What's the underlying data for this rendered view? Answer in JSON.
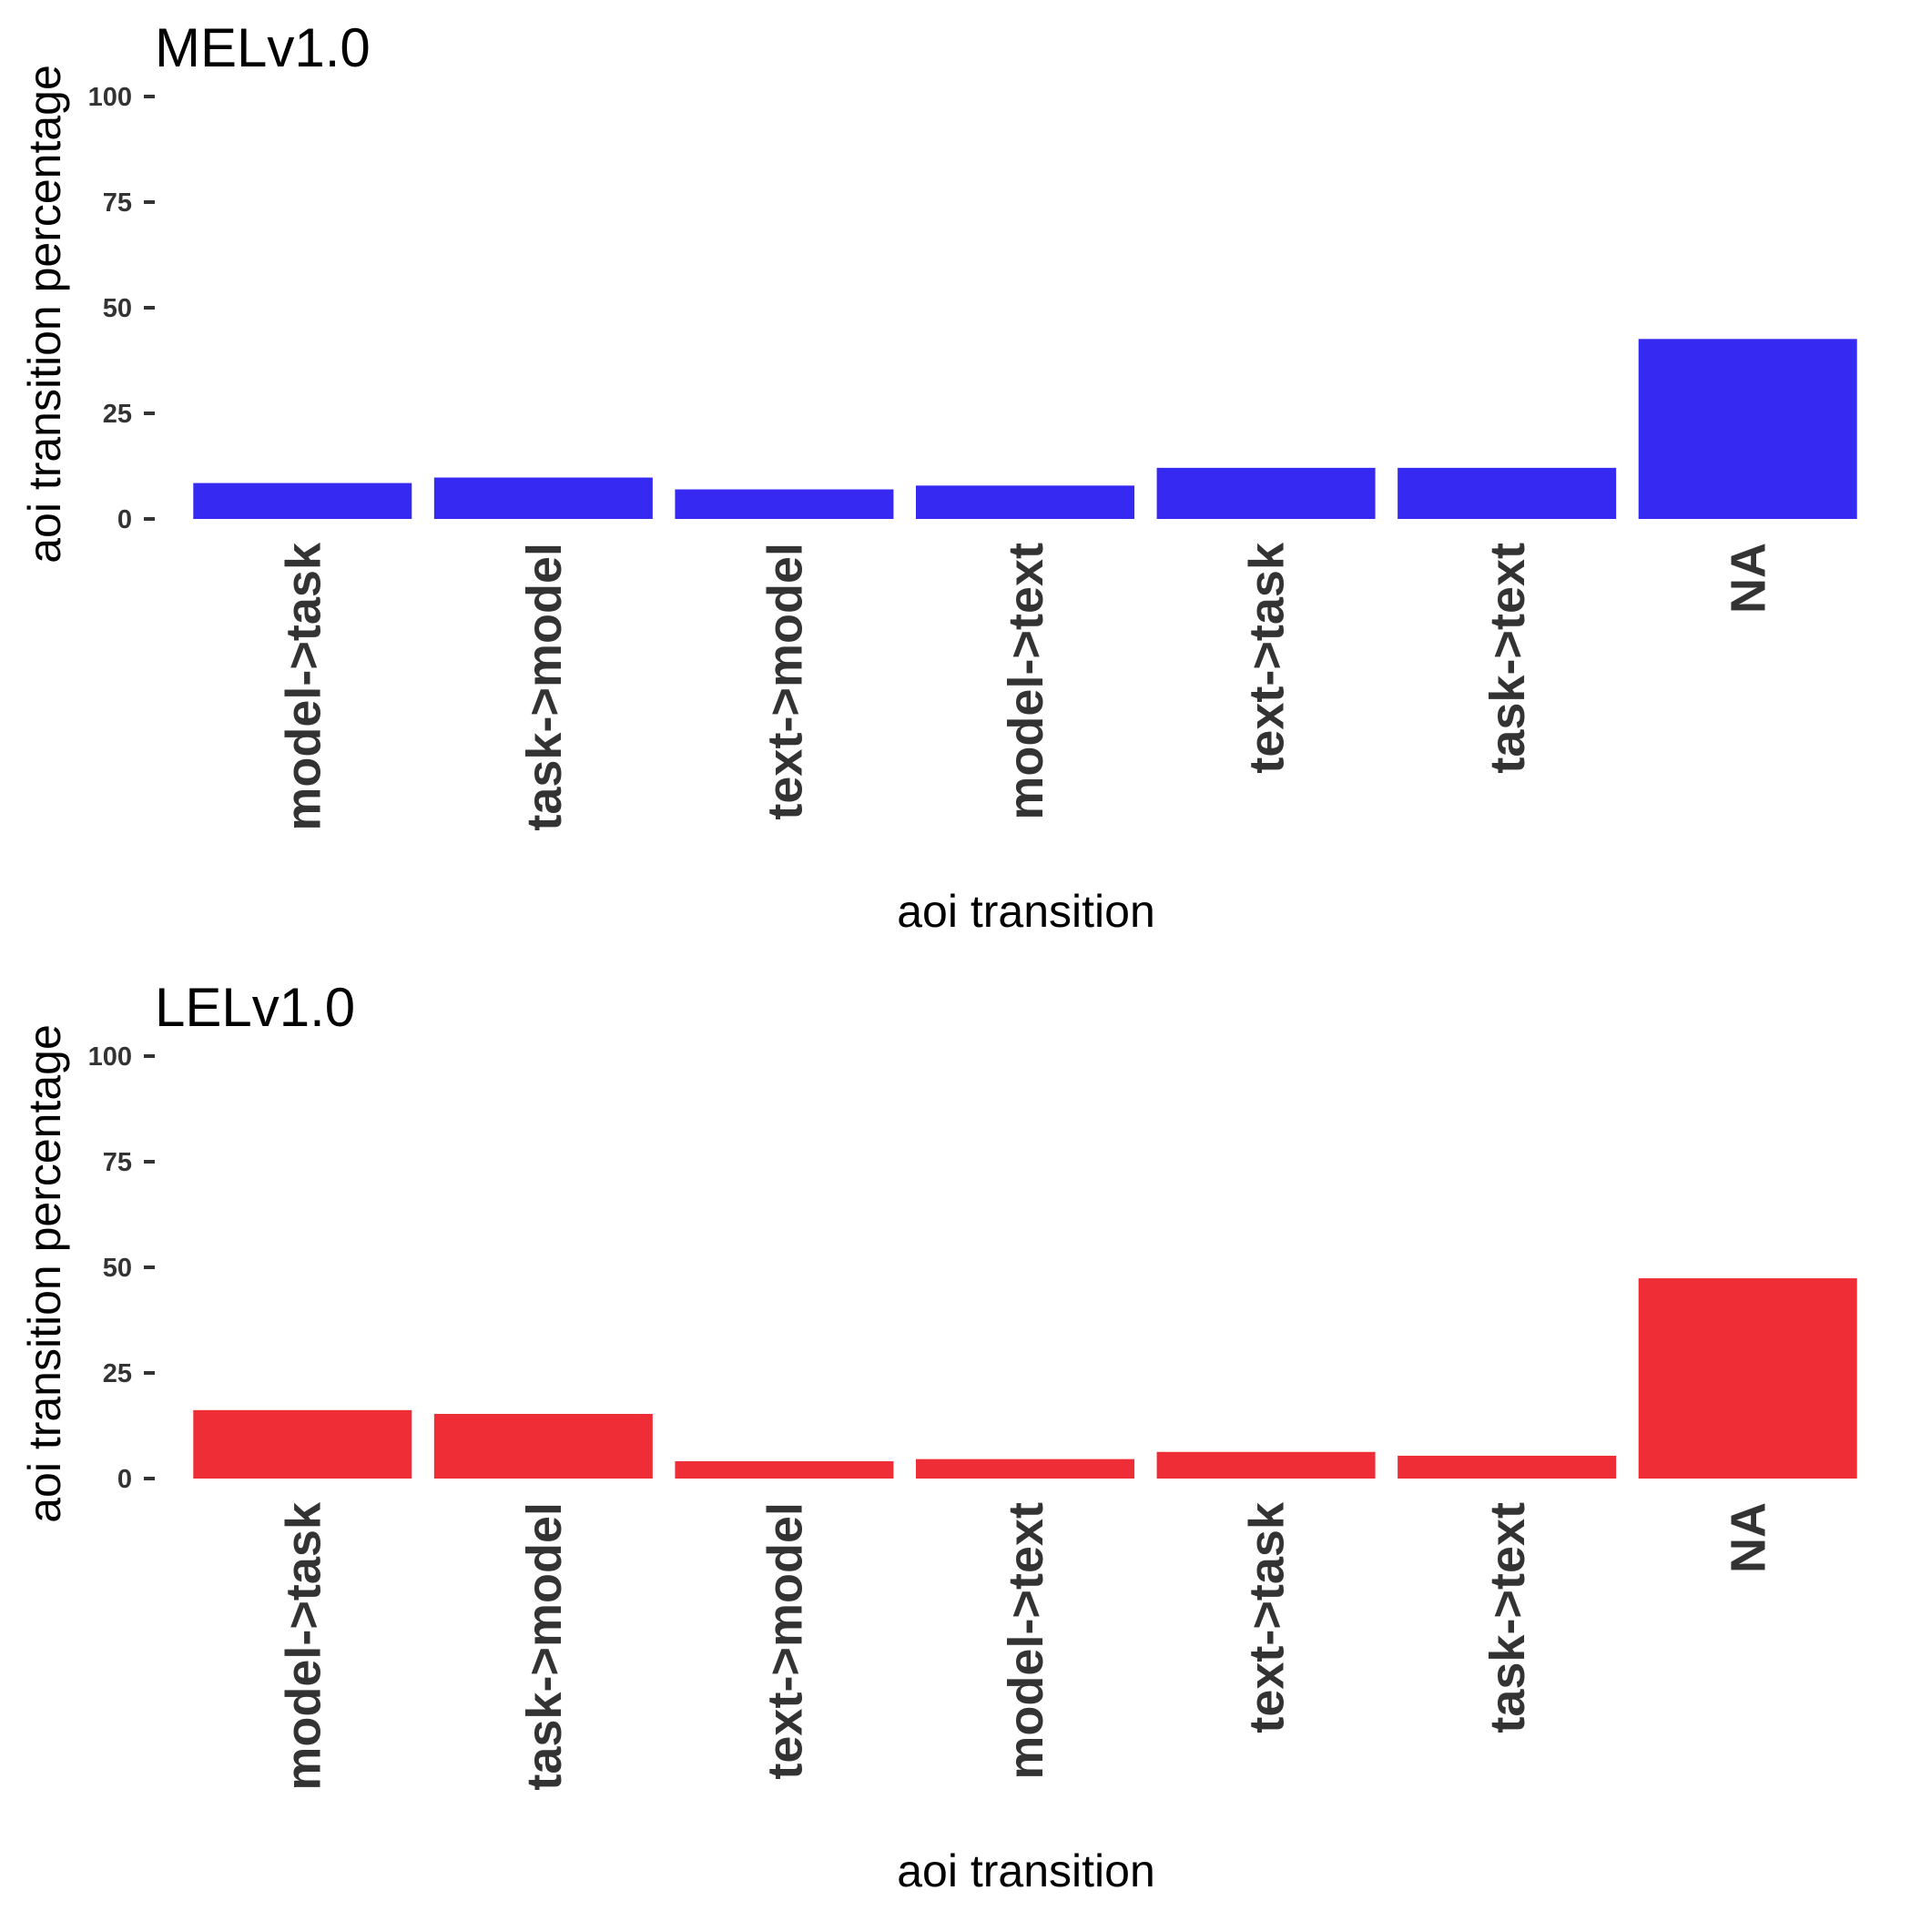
{
  "chart_data": [
    {
      "type": "bar",
      "title": "MELv1.0",
      "xlabel": "aoi transition",
      "ylabel": "aoi transition percentage",
      "categories": [
        "model->task",
        "task->model",
        "text->model",
        "model->text",
        "text->task",
        "task->text",
        "NA"
      ],
      "values": [
        8.5,
        9.8,
        7.0,
        7.9,
        12.1,
        12.1,
        42.6
      ],
      "ylim": [
        0,
        100
      ],
      "yticks": [
        "0",
        "25",
        "50",
        "75",
        "100"
      ],
      "color": "#3629f2",
      "grid": false,
      "legend": "none"
    },
    {
      "type": "bar",
      "title": "LELv1.0",
      "xlabel": "aoi transition",
      "ylabel": "aoi transition percentage",
      "categories": [
        "model->task",
        "task->model",
        "text->model",
        "model->text",
        "text->task",
        "task->text",
        "NA"
      ],
      "values": [
        16.2,
        15.3,
        4.1,
        4.6,
        6.3,
        5.4,
        47.4
      ],
      "ylim": [
        0,
        100
      ],
      "yticks": [
        "0",
        "25",
        "50",
        "75",
        "100"
      ],
      "color": "#ee2d36",
      "grid": false,
      "legend": "none"
    }
  ]
}
